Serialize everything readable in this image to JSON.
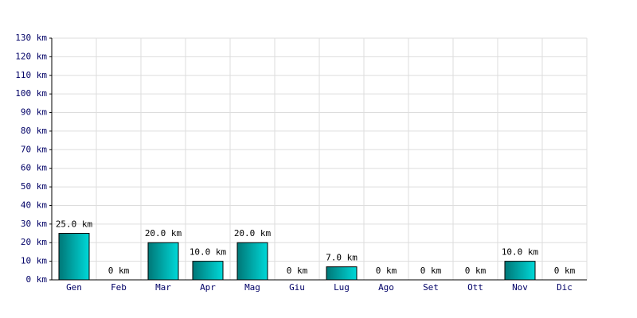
{
  "chart_data": {
    "type": "bar",
    "categories": [
      "Gen",
      "Feb",
      "Mar",
      "Apr",
      "Mag",
      "Giu",
      "Lug",
      "Ago",
      "Set",
      "Ott",
      "Nov",
      "Dic"
    ],
    "values": [
      25,
      0,
      20,
      10,
      20,
      0,
      7,
      0,
      0,
      0,
      10,
      0
    ],
    "value_labels": [
      "25.0 km",
      "0 km",
      "20.0 km",
      "10.0 km",
      "20.0 km",
      "0 km",
      "7.0 km",
      "0 km",
      "0 km",
      "0 km",
      "10.0 km",
      "0 km"
    ],
    "color": "#00d8d8",
    "ylim": [
      0,
      130
    ],
    "yticks": [
      {
        "value": 0,
        "label": "0 km"
      },
      {
        "value": 10,
        "label": "10 km"
      },
      {
        "value": 20,
        "label": "20 km"
      },
      {
        "value": 30,
        "label": "30 km"
      },
      {
        "value": 40,
        "label": "40 km"
      },
      {
        "value": 50,
        "label": "50 km"
      },
      {
        "value": 60,
        "label": "60 km"
      },
      {
        "value": 70,
        "label": "70 km"
      },
      {
        "value": 80,
        "label": "80 km"
      },
      {
        "value": 90,
        "label": "90 km"
      },
      {
        "value": 100,
        "label": "100 km"
      },
      {
        "value": 110,
        "label": "110 km"
      },
      {
        "value": 120,
        "label": "120 km"
      },
      {
        "value": 130,
        "label": "130 km"
      }
    ],
    "grid": true
  }
}
